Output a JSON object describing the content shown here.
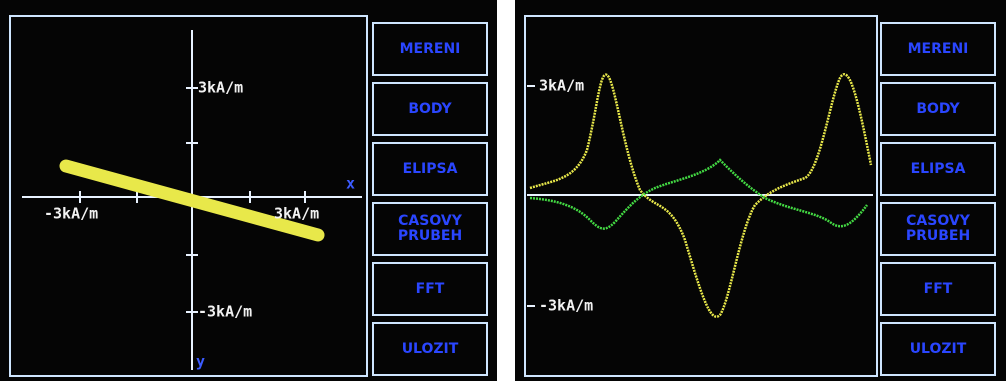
{
  "screens": [
    {
      "labels": {
        "y_top": "3kA/m",
        "y_bottom": "-3kA/m",
        "x_left": "-3kA/m",
        "x_right": "3kA/m",
        "x_axis": "x",
        "y_axis": "y"
      },
      "menu": [
        "MERENI",
        "BODY",
        "ELIPSA",
        "CASOVY PRUBEH",
        "FFT",
        "ULOZIT"
      ]
    },
    {
      "labels": {
        "y_top": "3kA/m",
        "y_bottom": "-3kA/m"
      },
      "menu": [
        "MERENI",
        "BODY",
        "ELIPSA",
        "CASOVY PRUBEH",
        "FFT",
        "ULOZIT"
      ]
    }
  ]
}
